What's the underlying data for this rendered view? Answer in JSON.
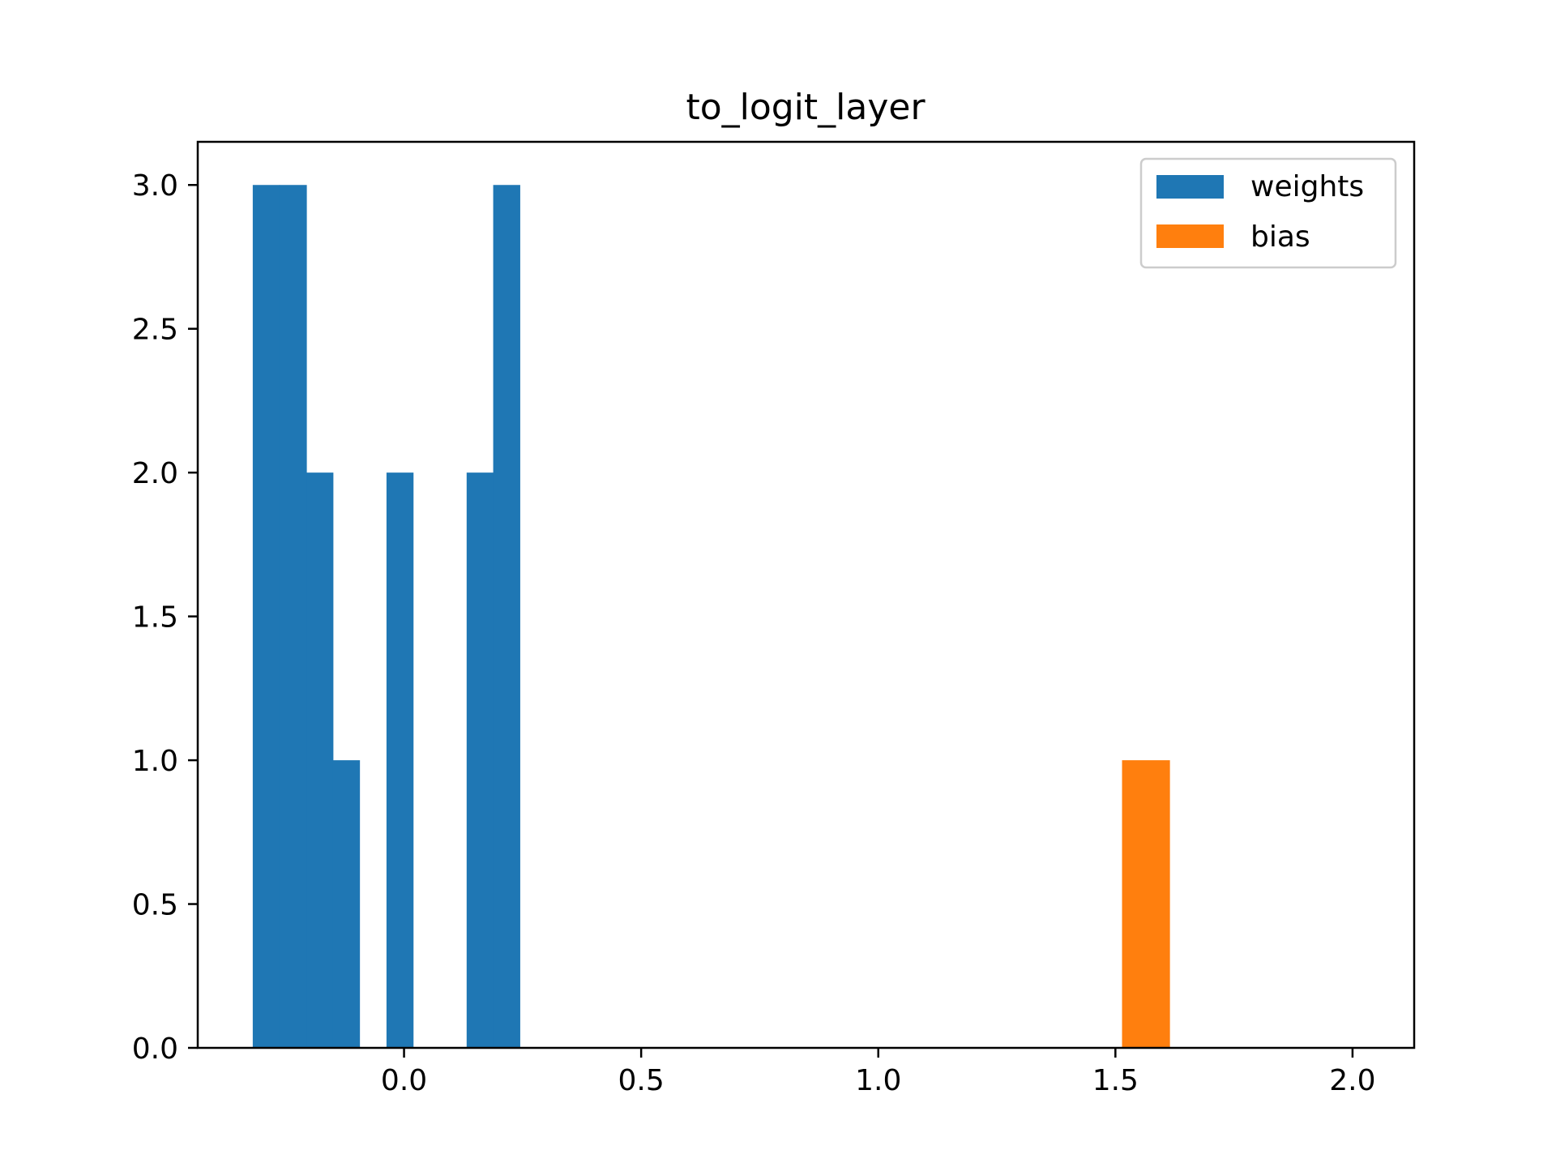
{
  "chart_data": {
    "type": "bar",
    "title": "to_logit_layer",
    "xlabel": "",
    "ylabel": "",
    "xlim": [
      -0.435,
      2.13
    ],
    "ylim": [
      0,
      3.15
    ],
    "xticks": [
      {
        "value": 0.0,
        "label": "0.0"
      },
      {
        "value": 0.5,
        "label": "0.5"
      },
      {
        "value": 1.0,
        "label": "1.0"
      },
      {
        "value": 1.5,
        "label": "1.5"
      },
      {
        "value": 2.0,
        "label": "2.0"
      }
    ],
    "yticks": [
      {
        "value": 0.0,
        "label": "0.0"
      },
      {
        "value": 0.5,
        "label": "0.5"
      },
      {
        "value": 1.0,
        "label": "1.0"
      },
      {
        "value": 1.5,
        "label": "1.5"
      },
      {
        "value": 2.0,
        "label": "2.0"
      },
      {
        "value": 2.5,
        "label": "2.5"
      },
      {
        "value": 3.0,
        "label": "3.0"
      }
    ],
    "grid": false,
    "legend_position": "top-right",
    "series": [
      {
        "name": "weights",
        "color": "#1f77b4",
        "bins": [
          {
            "x0": -0.319,
            "x1": -0.263,
            "count": 3
          },
          {
            "x0": -0.263,
            "x1": -0.206,
            "count": 3
          },
          {
            "x0": -0.206,
            "x1": -0.15,
            "count": 2
          },
          {
            "x0": -0.15,
            "x1": -0.094,
            "count": 1
          },
          {
            "x0": -0.094,
            "x1": -0.037,
            "count": 0
          },
          {
            "x0": -0.037,
            "x1": 0.019,
            "count": 2
          },
          {
            "x0": 0.019,
            "x1": 0.075,
            "count": 0
          },
          {
            "x0": 0.075,
            "x1": 0.132,
            "count": 0
          },
          {
            "x0": 0.132,
            "x1": 0.188,
            "count": 2
          },
          {
            "x0": 0.188,
            "x1": 0.244,
            "count": 3
          }
        ]
      },
      {
        "name": "bias",
        "color": "#ff7f0e",
        "bins": [
          {
            "x0": 1.514,
            "x1": 1.614,
            "count": 1
          }
        ]
      }
    ]
  }
}
